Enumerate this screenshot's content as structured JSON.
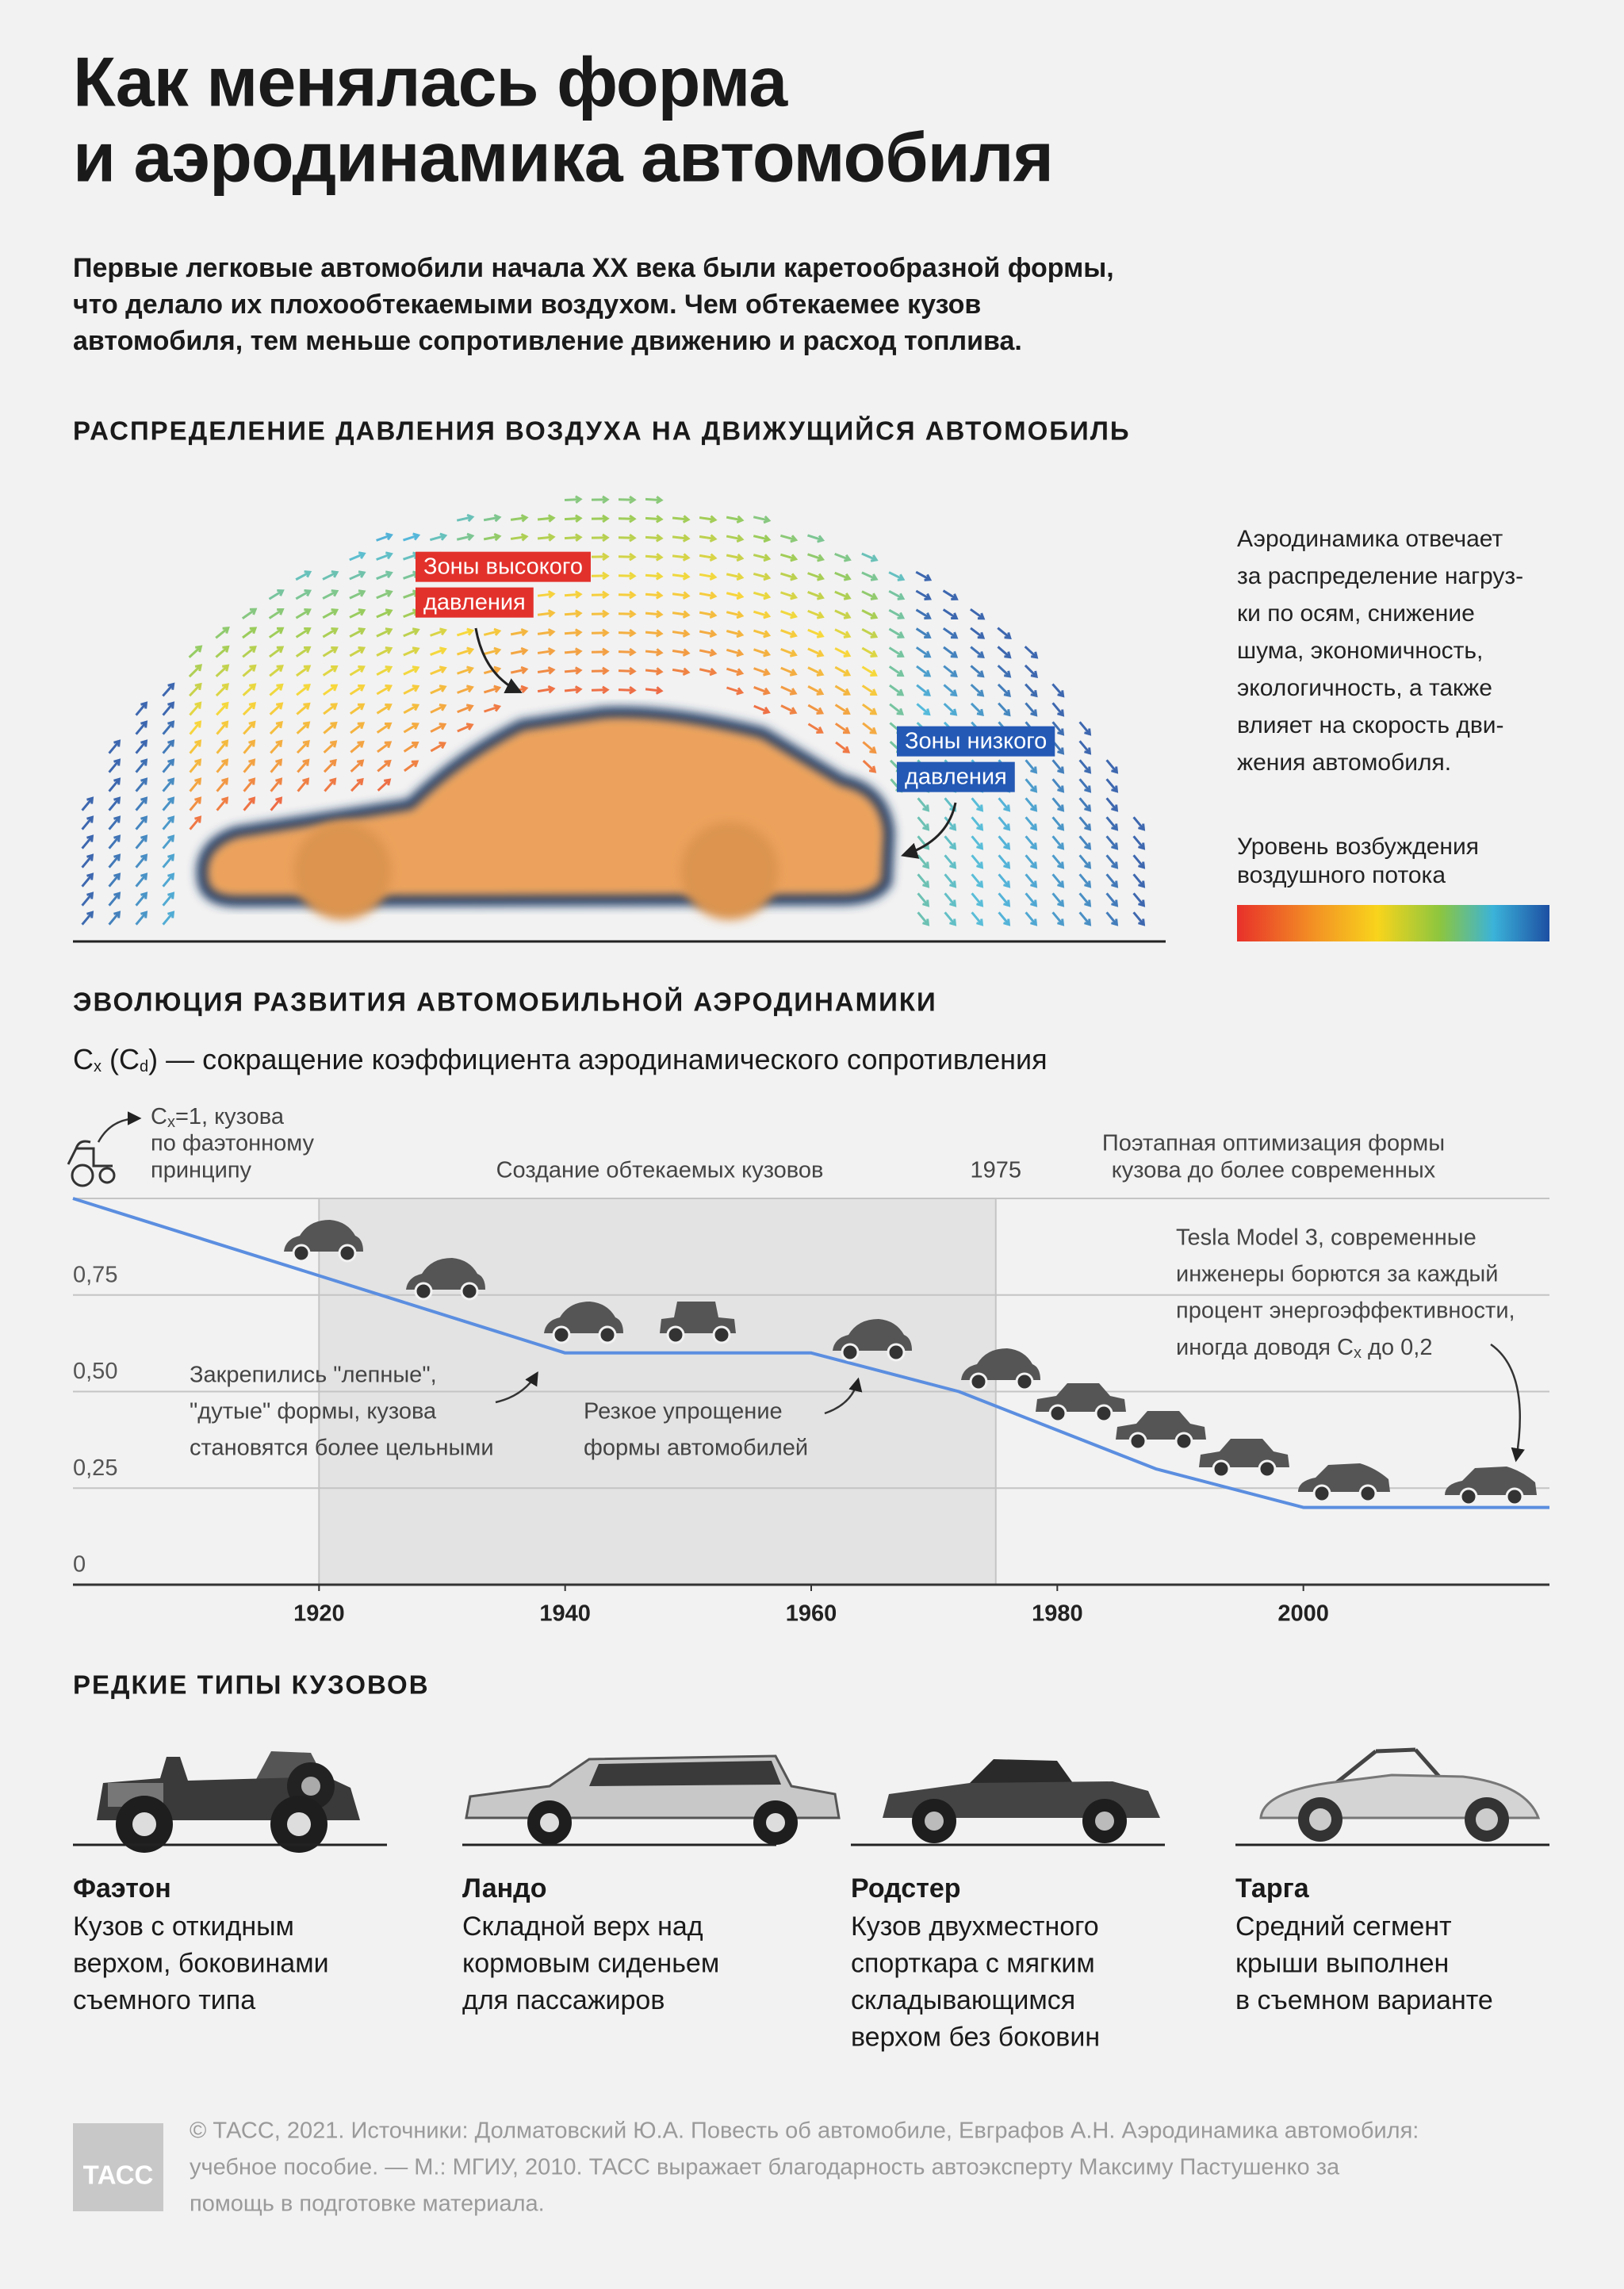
{
  "header": {
    "title": [
      "Как менялась форма",
      "и аэродинамика автомобиля"
    ],
    "intro": [
      "Первые легковые автомобили начала XX века были каретообразной формы,",
      "что делало их плохообтекаемыми воздухом. Чем обтекаемее кузов",
      "автомобиля, тем меньше сопротивление движению и расход топлива."
    ]
  },
  "pressure": {
    "heading": "РАСПРЕДЕЛЕНИЕ ДАВЛЕНИЯ ВОЗДУХА НА ДВИЖУЩИЙСЯ АВТОМОБИЛЬ",
    "high_label": [
      "Зоны высокого",
      "давления"
    ],
    "low_label": [
      "Зоны низкого",
      "давления"
    ],
    "description": [
      "Аэродинамика отвечает",
      "за распределение нагруз-",
      "ки по осям, снижение",
      "шума, экономичность,",
      "экологичность, а также",
      "влияет на скорость дви-",
      "жения автомобиля."
    ],
    "legend_title": [
      "Уровень возбуждения",
      "воздушного потока"
    ]
  },
  "chart_data": {
    "type": "line",
    "title": "ЭВОЛЮЦИЯ РАЗВИТИЯ АВТОМОБИЛЬНОЙ АЭРОДИНАМИКИ",
    "subtitle": [
      "C",
      "x",
      " (C",
      "d",
      ") — сокращение коэффициента аэродинамического сопротивления"
    ],
    "x": [
      1900,
      1940,
      1960,
      1972,
      1988,
      2000,
      2020
    ],
    "values": [
      1,
      0.6,
      0.6,
      0.5,
      0.3,
      0.2,
      0.2
    ],
    "color": "#5b8ee0",
    "xlim": [
      1900,
      2020
    ],
    "ylim": [
      0,
      1
    ],
    "xticks": [
      1920,
      1940,
      1960,
      1980,
      2000
    ],
    "yticks": [
      0,
      {
        "value": 0.25,
        "label": "0,25"
      },
      {
        "value": 0.5,
        "label": "0,50"
      },
      {
        "value": 0.75,
        "label": "0,75"
      }
    ],
    "grid": true,
    "highlight": [
      1920,
      1975
    ],
    "annotations": {
      "phaeton": [
        "C",
        "x",
        "=1, кузова",
        "по фаэтонному",
        "принципу"
      ],
      "streamlined": "Создание обтекаемых кузовов",
      "optimization": [
        "Поэтапная оптимизация формы",
        "кузова до более современных"
      ],
      "tesla": [
        "Tesla Model 3, современные",
        "инженеры борются за каждый",
        "процент энергоэффективности,",
        "иногда доводя C",
        "x",
        " до 0,2"
      ],
      "molded": [
        "Закрепились \"лепные\",",
        "\"дутые\" формы, кузова",
        "становятся более цельными"
      ],
      "simplified": [
        "Резкое упрощение",
        "формы автомобилей"
      ]
    }
  },
  "body_types": {
    "heading": "РЕДКИЕ ТИПЫ КУЗОВОВ",
    "items": [
      {
        "name": "Фаэтон",
        "description": [
          "Кузов с откидным",
          "верхом, боковинами",
          "съемного типа"
        ]
      },
      {
        "name": "Ландо",
        "description": [
          "Складной верх над",
          "кормовым сиденьем",
          "для пассажиров"
        ]
      },
      {
        "name": "Родстер",
        "description": [
          "Кузов двухместного",
          "спорткара с мягким",
          "складывающимся",
          "верхом без боковин"
        ]
      },
      {
        "name": "Тарга",
        "description": [
          "Средний сегмент",
          "крыши выполнен",
          "в съемном варианте"
        ]
      }
    ]
  },
  "footer": {
    "logo": "ТАСС",
    "text": [
      "© ТАСС, 2021. Источники: Долматовский Ю.А. Повесть об автомобиле, Евграфов А.Н. Аэродинамика автомобиля:",
      "учебное пособие. — М.: МГИУ, 2010. ТАСС выражает благодарность автоэксперту Максиму Пастушенко за",
      "помощь в подготовке материала."
    ]
  }
}
